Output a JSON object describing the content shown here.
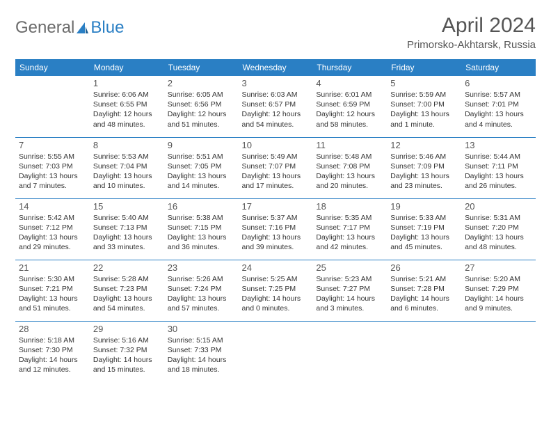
{
  "logo": {
    "text_general": "General",
    "text_blue": "Blue"
  },
  "title": "April 2024",
  "location": "Primorsko-Akhtarsk, Russia",
  "day_headers": [
    "Sunday",
    "Monday",
    "Tuesday",
    "Wednesday",
    "Thursday",
    "Friday",
    "Saturday"
  ],
  "colors": {
    "header_bg": "#2a7fc4",
    "header_text": "#ffffff",
    "text": "#333333",
    "daynum": "#555555",
    "divider": "#2a7fc4",
    "logo_gray": "#6b6b6b",
    "logo_blue": "#2a7fc4",
    "background": "#ffffff"
  },
  "weeks": [
    [
      null,
      {
        "n": "1",
        "sunrise": "Sunrise: 6:06 AM",
        "sunset": "Sunset: 6:55 PM",
        "daylight1": "Daylight: 12 hours",
        "daylight2": "and 48 minutes."
      },
      {
        "n": "2",
        "sunrise": "Sunrise: 6:05 AM",
        "sunset": "Sunset: 6:56 PM",
        "daylight1": "Daylight: 12 hours",
        "daylight2": "and 51 minutes."
      },
      {
        "n": "3",
        "sunrise": "Sunrise: 6:03 AM",
        "sunset": "Sunset: 6:57 PM",
        "daylight1": "Daylight: 12 hours",
        "daylight2": "and 54 minutes."
      },
      {
        "n": "4",
        "sunrise": "Sunrise: 6:01 AM",
        "sunset": "Sunset: 6:59 PM",
        "daylight1": "Daylight: 12 hours",
        "daylight2": "and 58 minutes."
      },
      {
        "n": "5",
        "sunrise": "Sunrise: 5:59 AM",
        "sunset": "Sunset: 7:00 PM",
        "daylight1": "Daylight: 13 hours",
        "daylight2": "and 1 minute."
      },
      {
        "n": "6",
        "sunrise": "Sunrise: 5:57 AM",
        "sunset": "Sunset: 7:01 PM",
        "daylight1": "Daylight: 13 hours",
        "daylight2": "and 4 minutes."
      }
    ],
    [
      {
        "n": "7",
        "sunrise": "Sunrise: 5:55 AM",
        "sunset": "Sunset: 7:03 PM",
        "daylight1": "Daylight: 13 hours",
        "daylight2": "and 7 minutes."
      },
      {
        "n": "8",
        "sunrise": "Sunrise: 5:53 AM",
        "sunset": "Sunset: 7:04 PM",
        "daylight1": "Daylight: 13 hours",
        "daylight2": "and 10 minutes."
      },
      {
        "n": "9",
        "sunrise": "Sunrise: 5:51 AM",
        "sunset": "Sunset: 7:05 PM",
        "daylight1": "Daylight: 13 hours",
        "daylight2": "and 14 minutes."
      },
      {
        "n": "10",
        "sunrise": "Sunrise: 5:49 AM",
        "sunset": "Sunset: 7:07 PM",
        "daylight1": "Daylight: 13 hours",
        "daylight2": "and 17 minutes."
      },
      {
        "n": "11",
        "sunrise": "Sunrise: 5:48 AM",
        "sunset": "Sunset: 7:08 PM",
        "daylight1": "Daylight: 13 hours",
        "daylight2": "and 20 minutes."
      },
      {
        "n": "12",
        "sunrise": "Sunrise: 5:46 AM",
        "sunset": "Sunset: 7:09 PM",
        "daylight1": "Daylight: 13 hours",
        "daylight2": "and 23 minutes."
      },
      {
        "n": "13",
        "sunrise": "Sunrise: 5:44 AM",
        "sunset": "Sunset: 7:11 PM",
        "daylight1": "Daylight: 13 hours",
        "daylight2": "and 26 minutes."
      }
    ],
    [
      {
        "n": "14",
        "sunrise": "Sunrise: 5:42 AM",
        "sunset": "Sunset: 7:12 PM",
        "daylight1": "Daylight: 13 hours",
        "daylight2": "and 29 minutes."
      },
      {
        "n": "15",
        "sunrise": "Sunrise: 5:40 AM",
        "sunset": "Sunset: 7:13 PM",
        "daylight1": "Daylight: 13 hours",
        "daylight2": "and 33 minutes."
      },
      {
        "n": "16",
        "sunrise": "Sunrise: 5:38 AM",
        "sunset": "Sunset: 7:15 PM",
        "daylight1": "Daylight: 13 hours",
        "daylight2": "and 36 minutes."
      },
      {
        "n": "17",
        "sunrise": "Sunrise: 5:37 AM",
        "sunset": "Sunset: 7:16 PM",
        "daylight1": "Daylight: 13 hours",
        "daylight2": "and 39 minutes."
      },
      {
        "n": "18",
        "sunrise": "Sunrise: 5:35 AM",
        "sunset": "Sunset: 7:17 PM",
        "daylight1": "Daylight: 13 hours",
        "daylight2": "and 42 minutes."
      },
      {
        "n": "19",
        "sunrise": "Sunrise: 5:33 AM",
        "sunset": "Sunset: 7:19 PM",
        "daylight1": "Daylight: 13 hours",
        "daylight2": "and 45 minutes."
      },
      {
        "n": "20",
        "sunrise": "Sunrise: 5:31 AM",
        "sunset": "Sunset: 7:20 PM",
        "daylight1": "Daylight: 13 hours",
        "daylight2": "and 48 minutes."
      }
    ],
    [
      {
        "n": "21",
        "sunrise": "Sunrise: 5:30 AM",
        "sunset": "Sunset: 7:21 PM",
        "daylight1": "Daylight: 13 hours",
        "daylight2": "and 51 minutes."
      },
      {
        "n": "22",
        "sunrise": "Sunrise: 5:28 AM",
        "sunset": "Sunset: 7:23 PM",
        "daylight1": "Daylight: 13 hours",
        "daylight2": "and 54 minutes."
      },
      {
        "n": "23",
        "sunrise": "Sunrise: 5:26 AM",
        "sunset": "Sunset: 7:24 PM",
        "daylight1": "Daylight: 13 hours",
        "daylight2": "and 57 minutes."
      },
      {
        "n": "24",
        "sunrise": "Sunrise: 5:25 AM",
        "sunset": "Sunset: 7:25 PM",
        "daylight1": "Daylight: 14 hours",
        "daylight2": "and 0 minutes."
      },
      {
        "n": "25",
        "sunrise": "Sunrise: 5:23 AM",
        "sunset": "Sunset: 7:27 PM",
        "daylight1": "Daylight: 14 hours",
        "daylight2": "and 3 minutes."
      },
      {
        "n": "26",
        "sunrise": "Sunrise: 5:21 AM",
        "sunset": "Sunset: 7:28 PM",
        "daylight1": "Daylight: 14 hours",
        "daylight2": "and 6 minutes."
      },
      {
        "n": "27",
        "sunrise": "Sunrise: 5:20 AM",
        "sunset": "Sunset: 7:29 PM",
        "daylight1": "Daylight: 14 hours",
        "daylight2": "and 9 minutes."
      }
    ],
    [
      {
        "n": "28",
        "sunrise": "Sunrise: 5:18 AM",
        "sunset": "Sunset: 7:30 PM",
        "daylight1": "Daylight: 14 hours",
        "daylight2": "and 12 minutes."
      },
      {
        "n": "29",
        "sunrise": "Sunrise: 5:16 AM",
        "sunset": "Sunset: 7:32 PM",
        "daylight1": "Daylight: 14 hours",
        "daylight2": "and 15 minutes."
      },
      {
        "n": "30",
        "sunrise": "Sunrise: 5:15 AM",
        "sunset": "Sunset: 7:33 PM",
        "daylight1": "Daylight: 14 hours",
        "daylight2": "and 18 minutes."
      },
      null,
      null,
      null,
      null
    ]
  ]
}
